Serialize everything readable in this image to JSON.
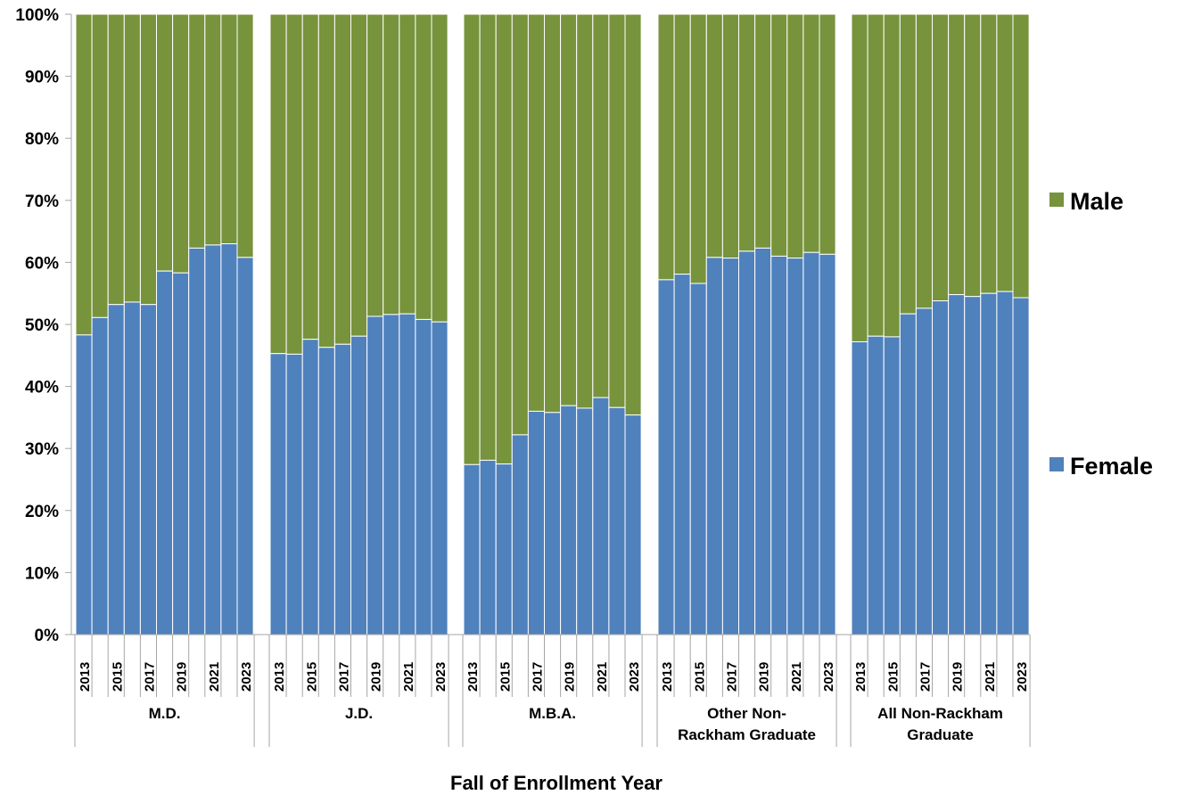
{
  "chart_data": {
    "type": "bar",
    "stacked": true,
    "percent": true,
    "xlabel": "Fall of Enrollment Year",
    "ylabel": "",
    "ylim": [
      0,
      100
    ],
    "y_ticks": [
      "0%",
      "10%",
      "20%",
      "30%",
      "40%",
      "50%",
      "60%",
      "70%",
      "80%",
      "90%",
      "100%"
    ],
    "x_years": [
      2013,
      2014,
      2015,
      2016,
      2017,
      2018,
      2019,
      2020,
      2021,
      2022,
      2023
    ],
    "x_year_labels_shown": [
      "2013",
      "",
      "2015",
      "",
      "2017",
      "",
      "2019",
      "",
      "2021",
      "",
      "2023"
    ],
    "legend_position": "right",
    "legend": [
      {
        "name": "Male",
        "color": "#77933C"
      },
      {
        "name": "Female",
        "color": "#4F81BD"
      }
    ],
    "colors": {
      "female": "#4F81BD",
      "male": "#77933C",
      "axis": "#A6A6A6"
    },
    "groups": [
      {
        "label_lines": [
          "M.D."
        ],
        "female": [
          48.3,
          51.1,
          53.2,
          53.6,
          53.2,
          58.6,
          58.3,
          62.3,
          62.8,
          63.0,
          60.8
        ]
      },
      {
        "label_lines": [
          "J.D."
        ],
        "female": [
          45.3,
          45.2,
          47.6,
          46.3,
          46.8,
          48.1,
          51.3,
          51.6,
          51.7,
          50.8,
          50.4
        ]
      },
      {
        "label_lines": [
          "M.B.A."
        ],
        "female": [
          27.4,
          28.1,
          27.5,
          32.2,
          36.0,
          35.8,
          36.9,
          36.5,
          38.2,
          36.6,
          35.4
        ]
      },
      {
        "label_lines": [
          "Other Non-",
          "Rackham Graduate"
        ],
        "female": [
          57.2,
          58.1,
          56.6,
          60.8,
          60.7,
          61.8,
          62.3,
          61.0,
          60.7,
          61.6,
          61.3
        ]
      },
      {
        "label_lines": [
          "All Non-Rackham",
          "Graduate"
        ],
        "female": [
          47.2,
          48.1,
          48.0,
          51.7,
          52.6,
          53.8,
          54.8,
          54.5,
          55.0,
          55.3,
          54.3
        ]
      }
    ]
  }
}
